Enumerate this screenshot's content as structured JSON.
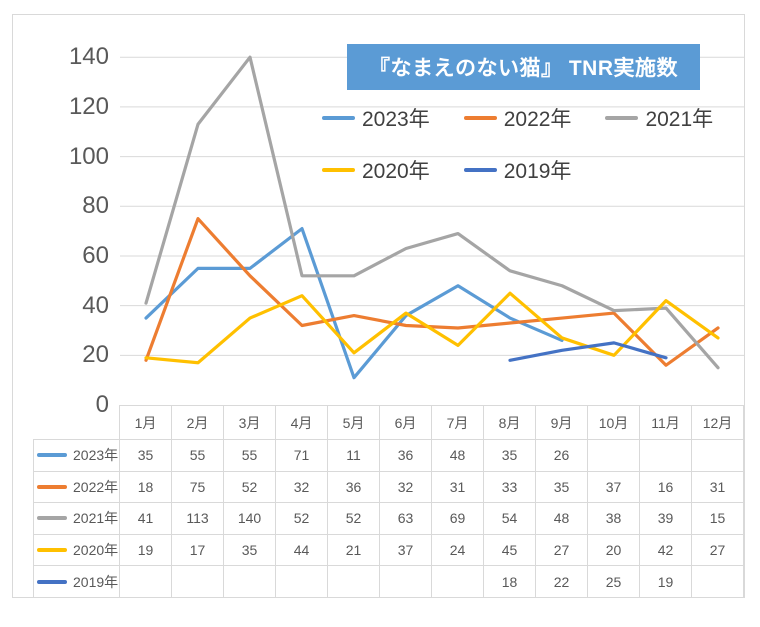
{
  "chart_data": {
    "type": "line",
    "title": "『なまえのない猫』 TNR実施数",
    "title_bg": "#5B9BD5",
    "title_color": "#FFFFFF",
    "categories": [
      "1月",
      "2月",
      "3月",
      "4月",
      "5月",
      "6月",
      "7月",
      "8月",
      "9月",
      "10月",
      "11月",
      "12月"
    ],
    "series": [
      {
        "name": "2023年",
        "color": "#5B9BD5",
        "values": [
          35,
          55,
          55,
          71,
          11,
          36,
          48,
          35,
          26,
          null,
          null,
          null
        ]
      },
      {
        "name": "2022年",
        "color": "#ED7D31",
        "values": [
          18,
          75,
          52,
          32,
          36,
          32,
          31,
          33,
          35,
          37,
          16,
          31
        ]
      },
      {
        "name": "2021年",
        "color": "#A5A5A5",
        "values": [
          41,
          113,
          140,
          52,
          52,
          63,
          69,
          54,
          48,
          38,
          39,
          15
        ]
      },
      {
        "name": "2020年",
        "color": "#FFC000",
        "values": [
          19,
          17,
          35,
          44,
          21,
          37,
          24,
          45,
          27,
          20,
          42,
          27
        ]
      },
      {
        "name": "2019年",
        "color": "#4472C4",
        "values": [
          null,
          null,
          null,
          null,
          null,
          null,
          null,
          18,
          22,
          25,
          19,
          null
        ]
      }
    ],
    "yticks": [
      0,
      20,
      40,
      60,
      80,
      100,
      120,
      140
    ],
    "ylim": [
      0,
      140
    ],
    "grid": true,
    "grid_color": "#D9D9D9",
    "legend_position": "top",
    "data_table_shown": true
  }
}
